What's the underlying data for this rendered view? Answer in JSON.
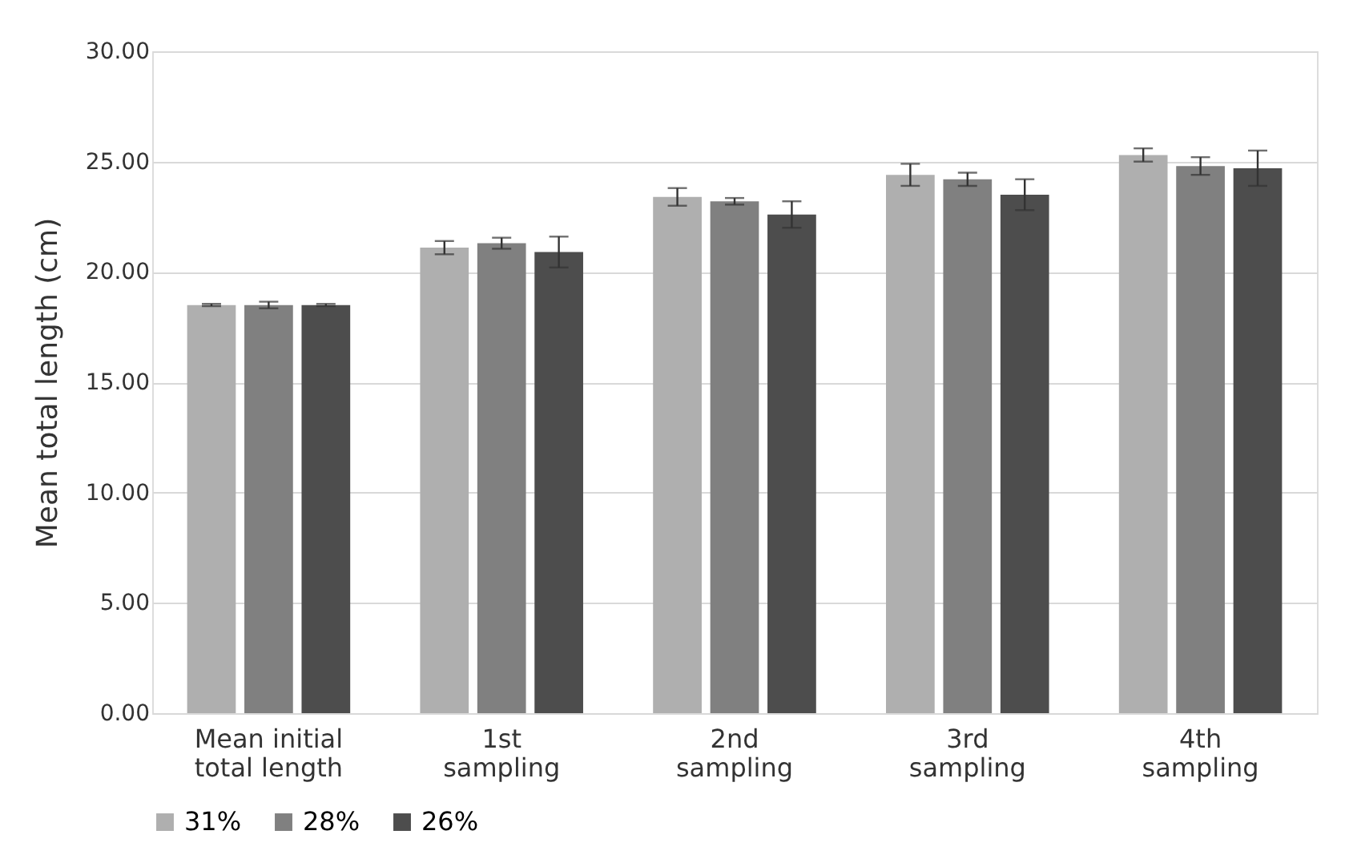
{
  "chart_data": {
    "type": "bar",
    "ylabel": "Mean total length (cm)",
    "categories": [
      "Mean initial total length",
      "1st sampling",
      "2nd sampling",
      "3rd sampling",
      "4th sampling"
    ],
    "series": [
      {
        "name": "31%",
        "color": "#afafaf",
        "values": [
          18.5,
          21.1,
          23.4,
          24.4,
          25.3
        ],
        "errors": [
          0.05,
          0.3,
          0.4,
          0.5,
          0.3
        ]
      },
      {
        "name": "28%",
        "color": "#808080",
        "values": [
          18.5,
          21.3,
          23.2,
          24.2,
          24.8
        ],
        "errors": [
          0.15,
          0.25,
          0.15,
          0.3,
          0.4
        ]
      },
      {
        "name": "26%",
        "color": "#4d4d4d",
        "values": [
          18.5,
          20.9,
          22.6,
          23.5,
          24.7
        ],
        "errors": [
          0.05,
          0.7,
          0.6,
          0.7,
          0.8
        ]
      }
    ],
    "ylim": [
      0,
      30
    ],
    "yticks": [
      {
        "value": 0,
        "label": "0.00"
      },
      {
        "value": 5,
        "label": "5.00"
      },
      {
        "value": 10,
        "label": "10.00"
      },
      {
        "value": 15,
        "label": "15.00"
      },
      {
        "value": 20,
        "label": "20.00"
      },
      {
        "value": 25,
        "label": "25.00"
      },
      {
        "value": 30,
        "label": "30.00"
      }
    ],
    "grid": "y",
    "legend": "bottom"
  }
}
